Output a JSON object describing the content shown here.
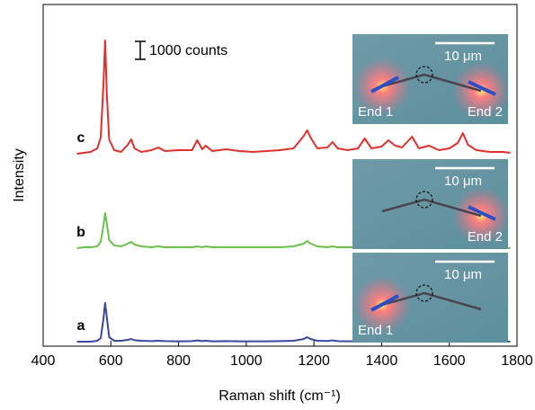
{
  "chart_data": {
    "type": "line",
    "xlabel": "Raman shift (cm⁻¹)",
    "ylabel": "Intensity",
    "xlim": [
      400,
      1800
    ],
    "xticks": [
      400,
      600,
      800,
      1000,
      1200,
      1400,
      1600,
      1800
    ],
    "ylim": [
      0,
      19000
    ],
    "scale_bar": {
      "value": 1000,
      "label": "1000 counts"
    },
    "x": [
      500,
      520,
      540,
      560,
      570,
      578,
      583,
      588,
      595,
      610,
      630,
      650,
      660,
      670,
      690,
      720,
      740,
      760,
      800,
      840,
      855,
      870,
      880,
      900,
      940,
      980,
      1020,
      1060,
      1100,
      1140,
      1170,
      1180,
      1190,
      1210,
      1240,
      1255,
      1270,
      1300,
      1330,
      1350,
      1370,
      1400,
      1420,
      1440,
      1460,
      1490,
      1510,
      1540,
      1570,
      1600,
      1625,
      1640,
      1655,
      1680,
      1720,
      1760,
      1780
    ],
    "series": [
      {
        "name": "c",
        "color": "#e0302c",
        "values": [
          10700,
          10750,
          10800,
          11000,
          11600,
          14500,
          17000,
          14000,
          11500,
          10900,
          10800,
          11200,
          11500,
          11000,
          10800,
          10900,
          11050,
          10850,
          10900,
          10900,
          11450,
          10950,
          11150,
          10850,
          10950,
          10850,
          10800,
          10850,
          10900,
          11000,
          11700,
          12000,
          11600,
          11000,
          11050,
          11350,
          11000,
          10900,
          11000,
          11550,
          11000,
          11100,
          11450,
          11150,
          11050,
          11650,
          11000,
          11150,
          10900,
          11000,
          11300,
          11850,
          11200,
          10900,
          10800,
          10800,
          10750
        ]
      },
      {
        "name": "b",
        "color": "#6cbf4a",
        "values": [
          5450,
          5500,
          5500,
          5550,
          5800,
          6700,
          7400,
          6800,
          5900,
          5600,
          5550,
          5700,
          5800,
          5650,
          5550,
          5500,
          5550,
          5500,
          5500,
          5500,
          5550,
          5500,
          5550,
          5500,
          5500,
          5500,
          5500,
          5500,
          5500,
          5550,
          5700,
          5850,
          5700,
          5550,
          5500,
          5550,
          5500,
          5500,
          5500,
          5550,
          5500,
          5500,
          5550,
          5500,
          5500,
          5550,
          5500,
          5500,
          5500,
          5500,
          5550,
          5700,
          5550,
          5500,
          5500,
          5450,
          5450
        ]
      },
      {
        "name": "a",
        "color": "#3b47a0",
        "values": [
          250,
          250,
          250,
          300,
          450,
          1500,
          2400,
          1600,
          500,
          300,
          300,
          350,
          400,
          330,
          300,
          280,
          300,
          280,
          270,
          280,
          320,
          280,
          300,
          270,
          280,
          270,
          270,
          270,
          280,
          300,
          400,
          500,
          400,
          300,
          290,
          320,
          280,
          270,
          280,
          330,
          280,
          290,
          330,
          290,
          280,
          330,
          280,
          290,
          270,
          280,
          320,
          500,
          330,
          270,
          260,
          260,
          250
        ]
      }
    ],
    "insets": [
      {
        "scale": "10 μm",
        "labels": [
          "End 1",
          "End 2"
        ]
      },
      {
        "scale": "10 μm",
        "labels": [
          "End 2"
        ]
      },
      {
        "scale": "10 μm",
        "labels": [
          "End 1"
        ]
      }
    ]
  }
}
